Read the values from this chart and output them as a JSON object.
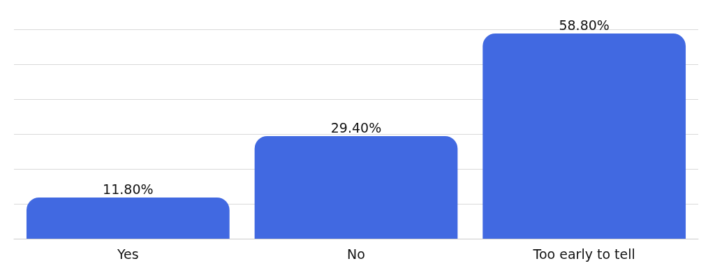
{
  "chart_data": {
    "type": "bar",
    "categories": [
      "Yes",
      "No",
      "Too early to tell"
    ],
    "values": [
      11.8,
      29.4,
      58.8
    ],
    "color": "#4169e1",
    "value_labels": [
      "11.80%",
      "29.40%",
      "58.80%"
    ],
    "ylim": [
      0,
      60
    ],
    "yticks": [
      {
        "value": 0,
        "label": null
      },
      {
        "value": 10,
        "label": null
      },
      {
        "value": 20,
        "label": null
      },
      {
        "value": 30,
        "label": null
      },
      {
        "value": 40,
        "label": null
      },
      {
        "value": 50,
        "label": null
      },
      {
        "value": 60,
        "label": null
      }
    ],
    "grid": "y",
    "tick_labels": "x"
  }
}
